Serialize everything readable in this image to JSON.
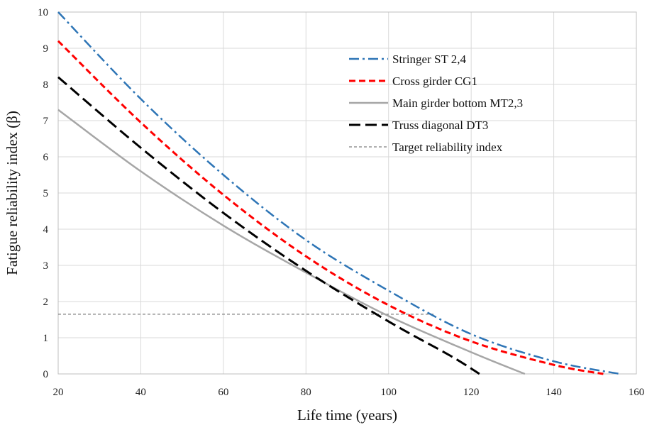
{
  "chart_data": {
    "type": "line",
    "title": "",
    "xlabel": "Life time (years)",
    "ylabel": "Fatigue reliability  index (β)",
    "xlim": [
      20,
      160
    ],
    "ylim": [
      0,
      10
    ],
    "x_ticks": [
      20,
      40,
      60,
      80,
      100,
      120,
      140,
      160
    ],
    "y_ticks": [
      0,
      1,
      2,
      3,
      4,
      5,
      6,
      7,
      8,
      9,
      10
    ],
    "grid": true,
    "legend_position": "top-right",
    "series": [
      {
        "name": "Stringer ST 2,4",
        "color": "#2e75b6",
        "style": "dash-dot",
        "x": [
          20,
          40,
          60,
          80,
          100,
          120,
          140,
          156
        ],
        "y": [
          10.0,
          7.6,
          5.5,
          3.7,
          2.3,
          1.1,
          0.35,
          0.0
        ]
      },
      {
        "name": "Cross girder CG1",
        "color": "#ff0000",
        "style": "dashed",
        "x": [
          20,
          40,
          60,
          80,
          100,
          120,
          140,
          152
        ],
        "y": [
          9.2,
          6.95,
          4.95,
          3.25,
          1.9,
          0.9,
          0.25,
          0.0
        ]
      },
      {
        "name": "Main girder bottom MT2,3",
        "color": "#a6a6a6",
        "style": "solid",
        "x": [
          20,
          40,
          60,
          80,
          100,
          120,
          133
        ],
        "y": [
          7.3,
          5.6,
          4.1,
          2.8,
          1.6,
          0.6,
          0.0
        ]
      },
      {
        "name": "Truss diagonal DT3",
        "color": "#000000",
        "style": "long-dash",
        "x": [
          20,
          40,
          60,
          80,
          100,
          115,
          122
        ],
        "y": [
          8.2,
          6.25,
          4.45,
          2.85,
          1.45,
          0.5,
          0.0
        ]
      },
      {
        "name": "Target reliability index",
        "color": "#7f7f7f",
        "style": "fine-dash",
        "x": [
          20,
          111
        ],
        "y": [
          1.65,
          1.65
        ]
      }
    ]
  }
}
